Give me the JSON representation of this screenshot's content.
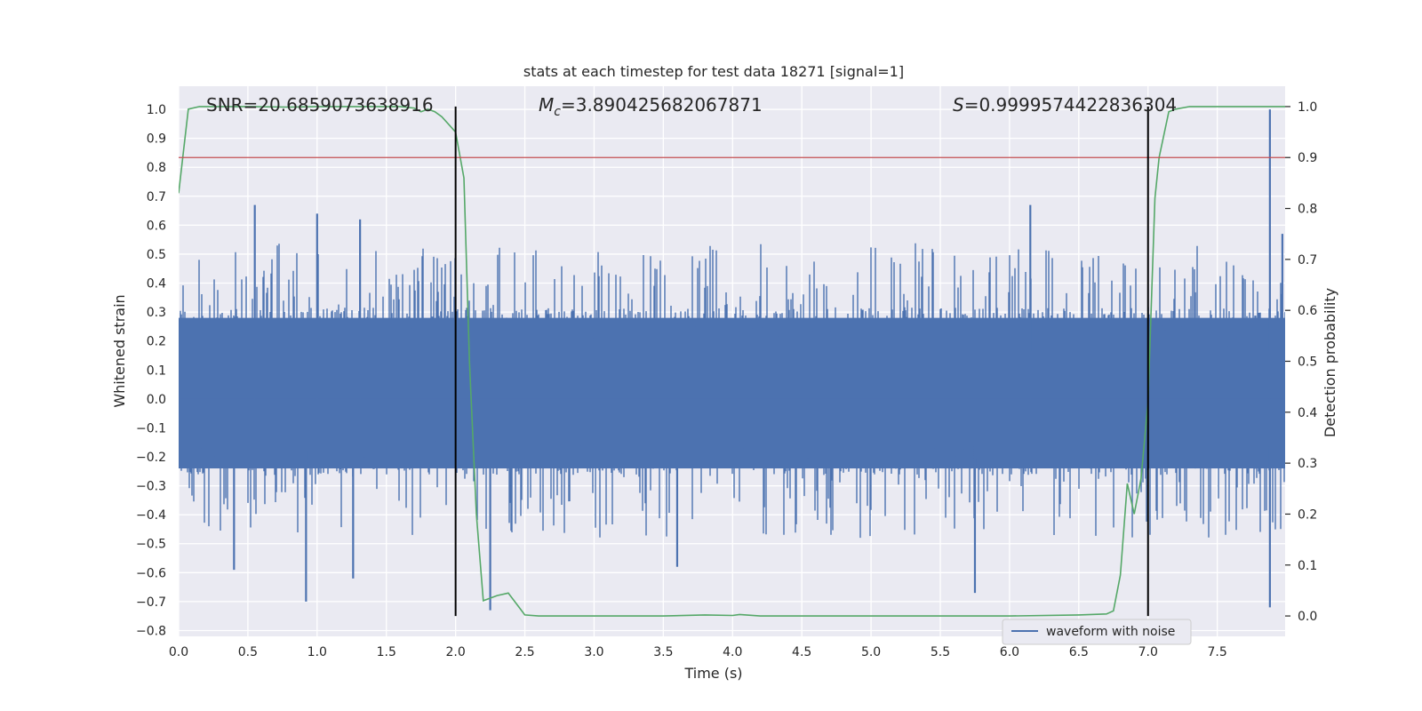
{
  "chart_data": {
    "type": "line",
    "title": "stats at each timestep for test data 18271 [signal=1]",
    "xlabel": "Time (s)",
    "ylabel": "Whitened strain",
    "y2label": "Detection probability",
    "xlim": [
      0.0,
      7.99
    ],
    "ylim": [
      -0.82,
      1.08
    ],
    "y2lim": [
      -0.04,
      1.04
    ],
    "x_ticks": [
      "0.0",
      "0.5",
      "1.0",
      "1.5",
      "2.0",
      "2.5",
      "3.0",
      "3.5",
      "4.0",
      "4.5",
      "5.0",
      "5.5",
      "6.0",
      "6.5",
      "7.0",
      "7.5"
    ],
    "y_ticks": [
      "1.0",
      "0.9",
      "0.8",
      "0.7",
      "0.6",
      "0.5",
      "0.4",
      "0.3",
      "0.2",
      "0.1",
      "0.0",
      "−0.1",
      "−0.2",
      "−0.3",
      "−0.4",
      "−0.5",
      "−0.6",
      "−0.7",
      "−0.8"
    ],
    "y2_ticks": [
      "1.0",
      "0.9",
      "0.8",
      "0.7",
      "0.6",
      "0.5",
      "0.4",
      "0.3",
      "0.2",
      "0.1",
      "0.0"
    ],
    "grid": true,
    "legend_position": "lower-right",
    "annotations": {
      "snr": "SNR=20.6859073638916",
      "mc_symbol": "M",
      "mc_sub": "c",
      "mc_value": "=3.890425682067871",
      "s_symbol": "S",
      "s_value": "=0.9999574422836304"
    },
    "series": [
      {
        "name": "waveform with noise",
        "axis": "left",
        "color": "#4c72b0",
        "kind": "noise",
        "envelope": {
          "typical_pos": 0.3,
          "typical_neg": -0.25,
          "peak_pos": 1.0,
          "peak_neg": -0.73
        },
        "spikes": [
          {
            "x": 0.55,
            "y": 0.67
          },
          {
            "x": 0.92,
            "y": -0.7
          },
          {
            "x": 1.0,
            "y": 0.64
          },
          {
            "x": 1.26,
            "y": -0.62
          },
          {
            "x": 1.31,
            "y": 0.62
          },
          {
            "x": 0.4,
            "y": -0.59
          },
          {
            "x": 2.25,
            "y": -0.73
          },
          {
            "x": 3.6,
            "y": -0.58
          },
          {
            "x": 5.75,
            "y": -0.67
          },
          {
            "x": 6.15,
            "y": 0.67
          },
          {
            "x": 7.88,
            "y": 1.0
          },
          {
            "x": 7.88,
            "y": -0.72
          },
          {
            "x": 7.97,
            "y": 0.57
          }
        ]
      },
      {
        "name": "",
        "axis": "right",
        "color": "#55a868",
        "x": [
          0.0,
          0.07,
          0.15,
          0.3,
          0.5,
          0.8,
          1.0,
          1.3,
          1.5,
          1.6,
          1.7,
          1.75,
          1.8,
          1.85,
          1.9,
          2.0,
          2.06,
          2.1,
          2.15,
          2.2,
          2.3,
          2.38,
          2.45,
          2.5,
          2.6,
          3.0,
          3.5,
          3.8,
          4.0,
          4.05,
          4.2,
          4.5,
          5.0,
          5.5,
          6.0,
          6.5,
          6.7,
          6.75,
          6.8,
          6.85,
          6.9,
          6.95,
          7.0,
          7.05,
          7.08,
          7.15,
          7.2,
          7.3,
          7.5,
          7.7,
          7.99
        ],
        "values": [
          0.83,
          0.995,
          1.0,
          1.0,
          1.0,
          0.999,
          1.0,
          1.0,
          1.0,
          1.0,
          0.997,
          0.99,
          0.995,
          0.99,
          0.98,
          0.95,
          0.86,
          0.5,
          0.2,
          0.03,
          0.04,
          0.045,
          0.02,
          0.002,
          0.0,
          0.0,
          0.0,
          0.002,
          0.001,
          0.003,
          0.0,
          0.0,
          0.0,
          0.0,
          0.0,
          0.002,
          0.004,
          0.01,
          0.08,
          0.26,
          0.2,
          0.27,
          0.42,
          0.82,
          0.9,
          0.99,
          0.995,
          1.0,
          1.0,
          1.0,
          1.0
        ]
      }
    ],
    "hlines": [
      {
        "axis": "right",
        "y": 0.9,
        "color": "#c44e52"
      }
    ],
    "vlines": [
      {
        "x": 2.0,
        "y2_from": 0.0,
        "y2_to": 1.0,
        "color": "#000000"
      },
      {
        "x": 7.0,
        "y2_from": 0.0,
        "y2_to": 1.0,
        "color": "#000000"
      }
    ]
  }
}
